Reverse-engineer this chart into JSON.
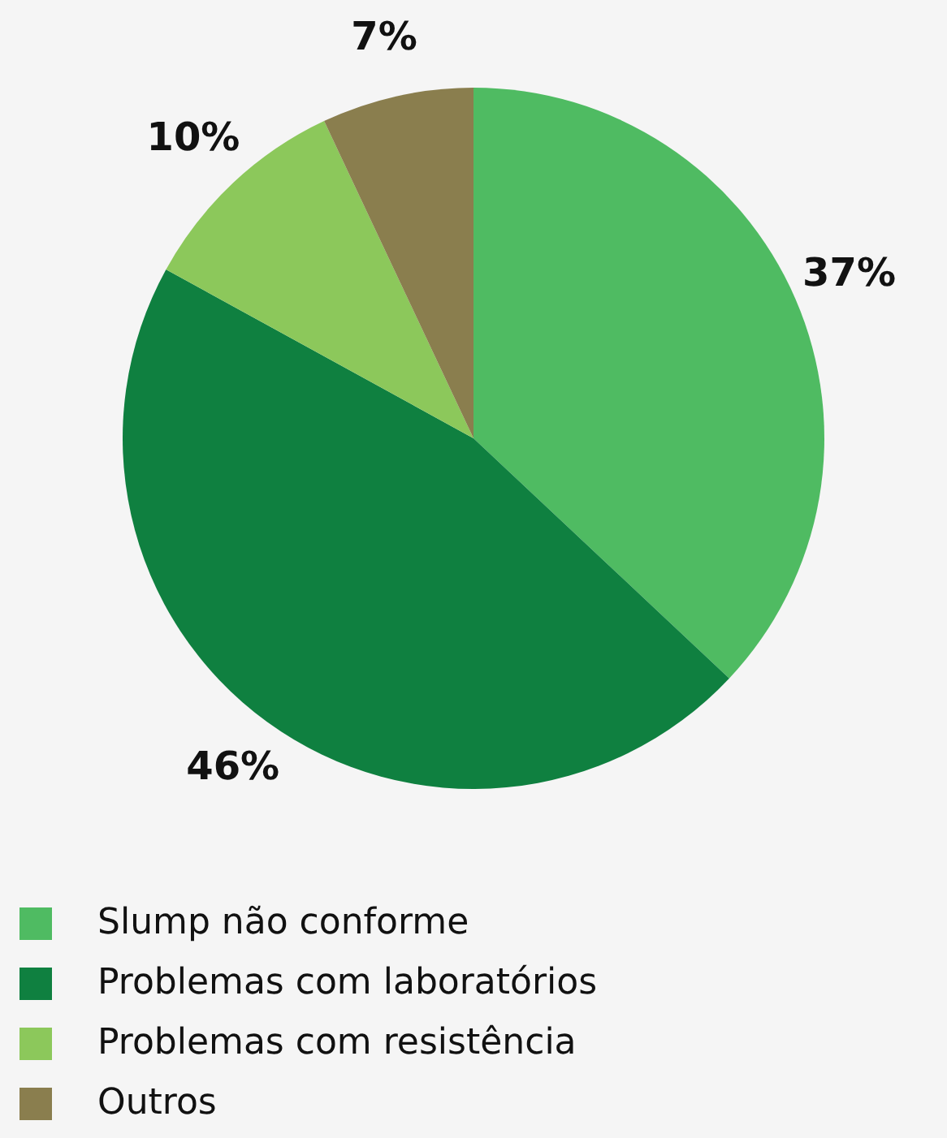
{
  "chart_data": {
    "type": "pie",
    "categories": [
      "Slump não conforme",
      "Problemas com laboratórios",
      "Problemas com resistência",
      "Outros"
    ],
    "values": [
      37,
      46,
      10,
      7
    ],
    "value_labels": [
      "37%",
      "46%",
      "10%",
      "7%"
    ],
    "colors": [
      "#4fbb62",
      "#0f8040",
      "#8cc85b",
      "#8a7e4e"
    ],
    "legend": "bottom left"
  }
}
